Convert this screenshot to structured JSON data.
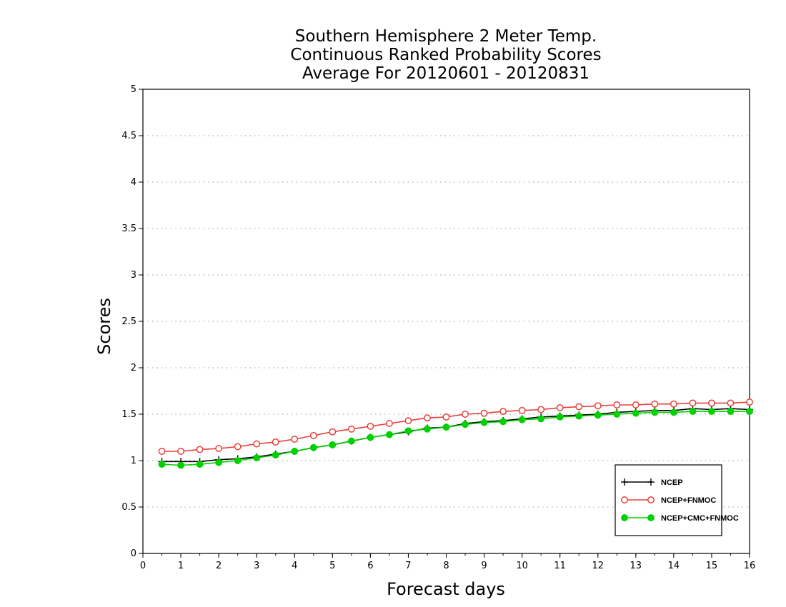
{
  "chart_data": {
    "type": "line",
    "title_lines": [
      "Southern Hemisphere 2 Meter Temp.",
      "Continuous Ranked Probability Scores",
      "Average For 20120601 - 20120831"
    ],
    "xlabel": "Forecast days",
    "ylabel": "Scores",
    "xlim": [
      0,
      16
    ],
    "ylim": [
      0,
      5
    ],
    "x_ticks": [
      "0",
      "1",
      "2",
      "3",
      "4",
      "5",
      "6",
      "7",
      "8",
      "9",
      "10",
      "11",
      "12",
      "13",
      "14",
      "15",
      "16"
    ],
    "y_ticks": [
      "0",
      "0.5",
      "1",
      "1.5",
      "2",
      "2.5",
      "3",
      "3.5",
      "4",
      "4.5",
      "5"
    ],
    "grid": "horizontal dotted",
    "legend_position": "bottom-right",
    "x": [
      0.5,
      1,
      1.5,
      2,
      2.5,
      3,
      3.5,
      4,
      4.5,
      5,
      5.5,
      6,
      6.5,
      7,
      7.5,
      8,
      8.5,
      9,
      9.5,
      10,
      10.5,
      11,
      11.5,
      12,
      12.5,
      13,
      13.5,
      14,
      14.5,
      15,
      15.5,
      16
    ],
    "series": [
      {
        "name": "NCEP",
        "color": "#000000",
        "marker": "plus",
        "values": [
          0.99,
          0.99,
          0.99,
          1.01,
          1.02,
          1.04,
          1.07,
          1.1,
          1.14,
          1.17,
          1.21,
          1.25,
          1.28,
          1.31,
          1.35,
          1.36,
          1.4,
          1.42,
          1.43,
          1.45,
          1.47,
          1.48,
          1.49,
          1.5,
          1.52,
          1.53,
          1.54,
          1.54,
          1.56,
          1.55,
          1.56,
          1.55
        ]
      },
      {
        "name": "NCEP+FNMOC",
        "color": "#e8403a",
        "marker": "open-circle",
        "values": [
          1.1,
          1.1,
          1.12,
          1.13,
          1.15,
          1.18,
          1.2,
          1.23,
          1.27,
          1.31,
          1.34,
          1.37,
          1.4,
          1.43,
          1.46,
          1.47,
          1.5,
          1.51,
          1.53,
          1.54,
          1.55,
          1.57,
          1.58,
          1.59,
          1.6,
          1.6,
          1.61,
          1.61,
          1.62,
          1.62,
          1.62,
          1.63
        ]
      },
      {
        "name": "NCEP+CMC+FNMOC",
        "color": "#00d000",
        "marker": "filled-circle",
        "values": [
          0.96,
          0.95,
          0.96,
          0.98,
          1.0,
          1.03,
          1.06,
          1.1,
          1.14,
          1.17,
          1.21,
          1.25,
          1.28,
          1.32,
          1.34,
          1.36,
          1.39,
          1.41,
          1.42,
          1.44,
          1.45,
          1.47,
          1.48,
          1.49,
          1.5,
          1.51,
          1.52,
          1.52,
          1.53,
          1.53,
          1.53,
          1.53
        ]
      }
    ]
  }
}
